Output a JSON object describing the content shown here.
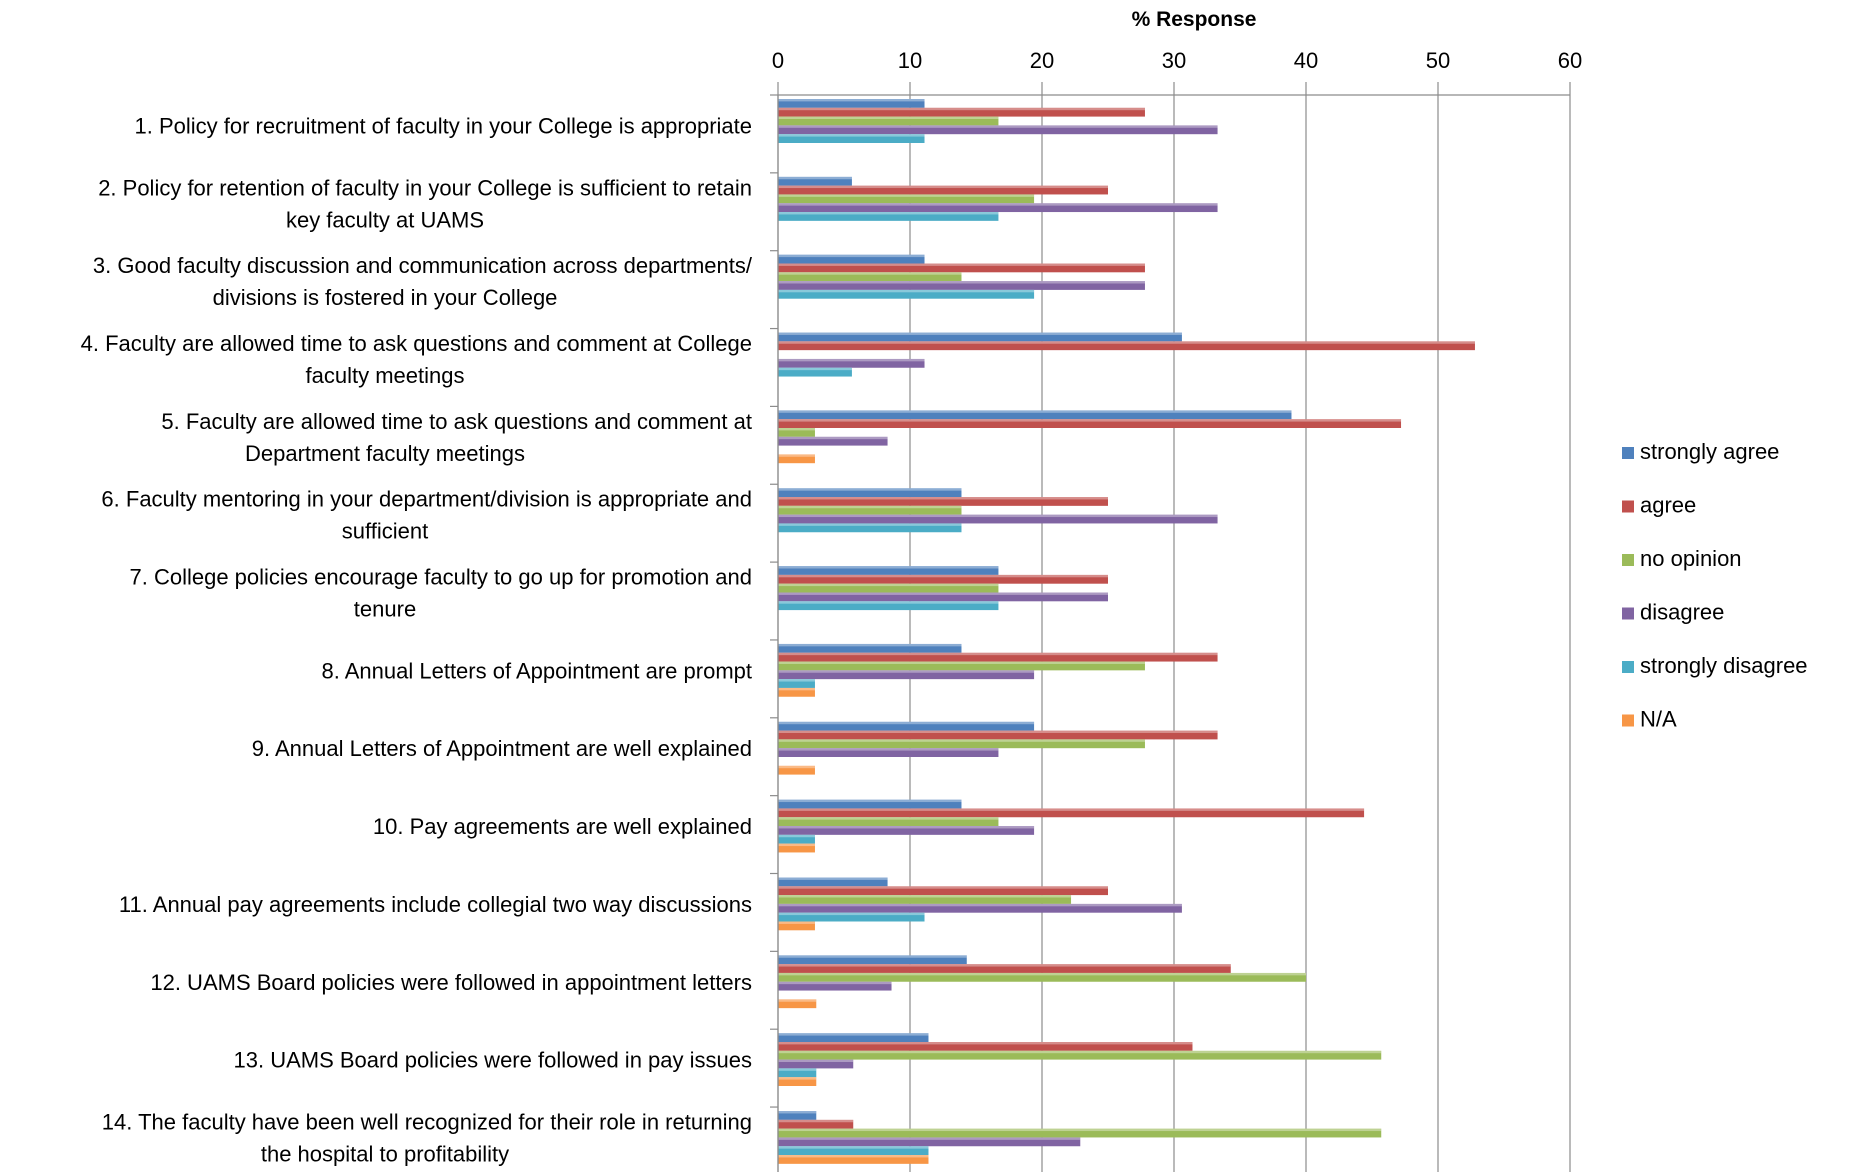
{
  "chart_data": {
    "type": "bar",
    "orientation": "horizontal",
    "title": "",
    "xlabel": "% Response",
    "ylabel": "",
    "xlim": [
      0,
      60
    ],
    "xticks": [
      0,
      10,
      20,
      30,
      40,
      50,
      60
    ],
    "grid": "vertical",
    "legend_position": "right",
    "categories": [
      [
        "1. Policy for recruitment of faculty in your College is appropriate"
      ],
      [
        "2. Policy for retention of faculty in your College is sufficient to retain",
        "key faculty at UAMS"
      ],
      [
        "3. Good faculty discussion and communication across departments/",
        "divisions is fostered in your College"
      ],
      [
        "4. Faculty are allowed time to ask questions and comment at College",
        "faculty meetings"
      ],
      [
        "5. Faculty are allowed time to ask questions and comment at",
        "Department faculty meetings"
      ],
      [
        "6. Faculty mentoring in your department/division is appropriate and",
        "sufficient"
      ],
      [
        "7. College policies encourage faculty to go up for promotion and",
        "tenure"
      ],
      [
        "8. Annual Letters of Appointment are prompt"
      ],
      [
        "9. Annual Letters of Appointment are well explained"
      ],
      [
        "10. Pay agreements are well explained"
      ],
      [
        "11. Annual pay agreements include collegial two way discussions"
      ],
      [
        "12. UAMS Board policies were followed in appointment letters"
      ],
      [
        "13. UAMS Board policies were followed in pay issues"
      ],
      [
        "14. The faculty have been well recognized for their role in returning",
        "the hospital to profitability"
      ]
    ],
    "series": [
      {
        "name": "strongly agree",
        "color": "#4f81bd",
        "values": [
          11.1,
          5.6,
          11.1,
          30.6,
          38.9,
          13.9,
          16.7,
          13.9,
          19.4,
          13.9,
          8.3,
          14.3,
          11.4,
          2.9
        ]
      },
      {
        "name": "agree",
        "color": "#c0504d",
        "values": [
          27.8,
          25.0,
          27.8,
          52.8,
          47.2,
          25.0,
          25.0,
          33.3,
          33.3,
          44.4,
          25.0,
          34.3,
          31.4,
          5.7
        ]
      },
      {
        "name": "no opinion",
        "color": "#9bbb59",
        "values": [
          16.7,
          19.4,
          13.9,
          0,
          2.8,
          13.9,
          16.7,
          27.8,
          27.8,
          16.7,
          22.2,
          40.0,
          45.7,
          45.7
        ]
      },
      {
        "name": "disagree",
        "color": "#8064a2",
        "values": [
          33.3,
          33.3,
          27.8,
          11.1,
          8.3,
          33.3,
          25.0,
          19.4,
          16.7,
          19.4,
          30.6,
          8.6,
          5.7,
          22.9
        ]
      },
      {
        "name": "strongly disagree",
        "color": "#4bacc6",
        "values": [
          11.1,
          16.7,
          19.4,
          5.6,
          0,
          13.9,
          16.7,
          2.8,
          0,
          2.8,
          11.1,
          0,
          2.9,
          11.4
        ]
      },
      {
        "name": "N/A",
        "color": "#f79646",
        "values": [
          0,
          0,
          0,
          0,
          2.8,
          0,
          0,
          2.8,
          2.8,
          2.8,
          2.8,
          2.9,
          2.9,
          11.4
        ]
      }
    ]
  }
}
